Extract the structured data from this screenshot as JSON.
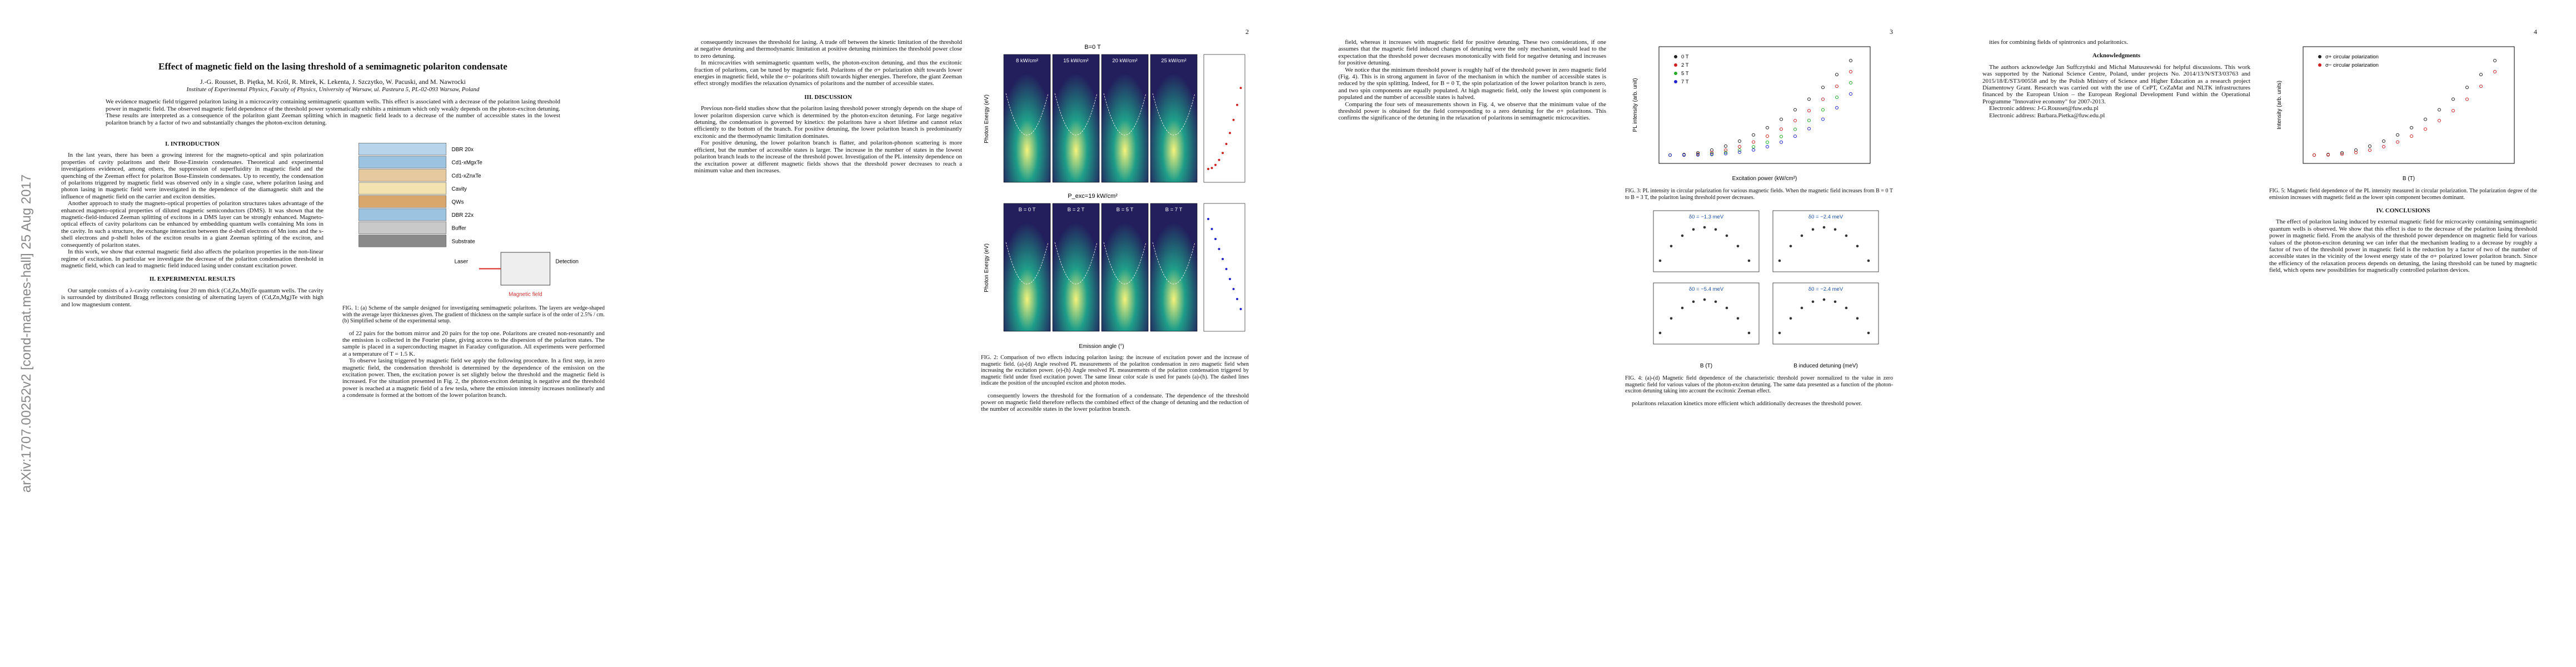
{
  "arxiv_stamp": "arXiv:1707.00252v2 [cond-mat.mes-hall] 25 Aug 2017",
  "pages": [
    {
      "title": "Effect of magnetic field on the lasing threshold of a semimagnetic polariton condensate",
      "authors": "J.-G. Rousset, B. Piętka, M. Król, R. Mirek, K. Lekenta, J. Szczytko, W. Pacuski, and M. Nawrocki",
      "affiliation": "Institute of Experimental Physics, Faculty of Physics, University of Warsaw, ul. Pasteura 5, PL-02-093 Warsaw, Poland",
      "abstract": "We evidence magnetic field triggered polariton lasing in a microcavity containing semimagnetic quantum wells. This effect is associated with a decrease of the polariton lasing threshold power in magnetic field. The observed magnetic field dependence of the threshold power systematically exhibits a minimum which only weakly depends on the photon-exciton detuning. These results are interpreted as a consequence of the polariton giant Zeeman splitting which in magnetic field leads to a decrease of the number of accessible states in the lowest polariton branch by a factor of two and substantially changes the photon-exciton detuning.",
      "columns": [
        [
          {
            "heading": "I. INTRODUCTION"
          },
          {
            "text": "In the last years, there has been a growing interest for the magneto-optical and spin polarization properties of cavity polaritons and their Bose-Einstein condensates. Theoretical and experimental investigations evidenced, among others, the suppression of superfluidity in magnetic field and the quenching of the Zeeman effect for polariton Bose-Einstein condensates. Up to recently, the condensation of polaritons triggered by magnetic field was observed only in a single case, where polariton lasing and photon lasing in magnetic field were investigated in the dependence of the diamagnetic shift and the influence of magnetic field on the carrier and exciton densities."
          },
          {
            "text": "Another approach to study the magneto-optical properties of polariton structures takes advantage of the enhanced magneto-optical properties of diluted magnetic semiconductors (DMS). It was shown that the magnetic-field-induced Zeeman splitting of excitons in a DMS layer can be strongly enhanced. Magneto-optical effects of cavity polaritons can be enhanced by embedding quantum wells containing Mn ions in the cavity. In such a structure, the exchange interaction between the d-shell electrons of Mn ions and the s-shell electrons and p-shell holes of the exciton results in a giant Zeeman splitting of the exciton, and consequently of polariton states."
          },
          {
            "text": "In this work, we show that external magnetic field also affects the polariton properties in the non-linear regime of excitation. In particular we investigate the decrease of the polariton condensation threshold in magnetic field, which can lead to magnetic field induced lasing under constant excitation power."
          },
          {
            "heading": "II. EXPERIMENTAL RESULTS"
          },
          {
            "text": "Our sample consists of a λ-cavity containing four 20 nm thick (Cd,Zn,Mn)Te quantum wells. The cavity is surrounded by distributed Bragg reflectors consisting of alternating layers of (Cd,Zn,Mg)Te with high and low magnesium content."
          }
        ],
        [
          {
            "figure": {
              "kind": "layers",
              "labels": [
                "DBR 20x",
                "Cd1-xMgxTe",
                "Cd1-xZnxTe",
                "Cavity",
                "QWs",
                "DBR 22x",
                "Buffer",
                "Substrate",
                "Laser",
                "Detection",
                "Magnetic field"
              ],
              "caption": "FIG. 1: (a) Scheme of the sample designed for investigating semimagnetic polaritons. The layers are wedge-shaped with the average layer thicknesses given. The gradient of thickness on the sample surface is of the order of 2.5% / cm. (b) Simplified scheme of the experimental setup."
            }
          },
          {
            "text": "of 22 pairs for the bottom mirror and 20 pairs for the top one. Polaritons are created non-resonantly and the emission is collected in the Fourier plane, giving access to the dispersion of the polariton states. The sample is placed in a superconducting magnet in Faraday configuration. All experiments were performed at a temperature of T = 1.5 K."
          },
          {
            "text": "To observe lasing triggered by magnetic field we apply the following procedure. In a first step, in zero magnetic field, the condensation threshold is determined by the dependence of the emission on the excitation power. Then, the excitation power is set slightly below the threshold and the magnetic field is increased. For the situation presented in Fig. 2, the photon-exciton detuning is negative and the threshold power is reached at a magnetic field of a few tesla, where the emission intensity increases nonlinearly and a condensate is formed at the bottom of the lower polariton branch."
          }
        ]
      ]
    },
    {
      "number": "2",
      "columns": [
        [
          {
            "text": "consequently increases the threshold for lasing. A trade off between the kinetic limitation of the threshold at negative detuning and thermodynamic limitation at positive detuning minimizes the threshold power close to zero detuning."
          },
          {
            "text": "In microcavities with semimagnetic quantum wells, the photon-exciton detuning, and thus the excitonic fraction of polaritons, can be tuned by magnetic field. Polaritons of the σ+ polarization shift towards lower energies in magnetic field, while the σ− polaritons shift towards higher energies. Therefore, the giant Zeeman effect strongly modifies the relaxation dynamics of polaritons and the number of accessible states."
          },
          {
            "heading": "III. DISCUSSION"
          },
          {
            "text": "Previous non-field studies show that the polariton lasing threshold power strongly depends on the shape of lower polariton dispersion curve which is determined by the photon-exciton detuning. For large negative detuning, the condensation is governed by kinetics: the polaritons have a short lifetime and cannot relax efficiently to the bottom of the branch. For positive detuning, the lower polariton branch is predominantly excitonic and the thermodynamic limitation dominates."
          },
          {
            "text": "For positive detuning, the lower polariton branch is flatter, and polariton-phonon scattering is more efficient, but the number of accessible states is larger. The increase in the number of states in the lowest polariton branch leads to the increase of the threshold power. Investigation of the PL intensity dependence on the excitation power at different magnetic fields shows that the threshold power decreases to reach a minimum value and then increases."
          }
        ],
        [
          {
            "figure": {
              "kind": "panels",
              "labels": [
                "8 kW/cm²",
                "15 kW/cm²",
                "20 kW/cm²",
                "25 kW/cm²",
                "B = 0 T",
                "B = 2 T",
                "B = 5 T",
                "B = 7 T",
                "Photon Energy (eV)",
                "Emission angle (°)",
                "P_exc=19 kW/cm²",
                "B=0 T"
              ],
              "caption": "FIG. 2: Comparison of two effects inducing polariton lasing: the increase of excitation power and the increase of magnetic field. (a)-(d) Angle resolved PL measurements of the polariton condensation in zero magnetic field when increasing the excitation power. (e)-(h) Angle resolved PL measurements of the polariton condensation triggered by magnetic field under fixed excitation power. The same linear color scale is used for panels (a)-(h). The dashed lines indicate the position of the uncoupled exciton and photon modes."
            }
          },
          {
            "text": "consequently lowers the threshold for the formation of a condensate. The dependence of the threshold power on magnetic field therefore reflects the combined effect of the change of detuning and the reduction of the number of accessible states in the lower polariton branch."
          }
        ]
      ]
    },
    {
      "number": "3",
      "columns": [
        [
          {
            "text": "field, whereas it increases with magnetic field for positive detuning. These two considerations, if one assumes that the magnetic field induced changes of detuning were the only mechanism, would lead to the expectation that the threshold power decreases monotonically with field for negative detuning and increases for positive detuning."
          },
          {
            "text": "We notice that the minimum threshold power is roughly half of the threshold power in zero magnetic field (Fig. 4). This is in strong argument in favor of the mechanism in which the number of accessible states is reduced by the spin splitting. Indeed, for B = 0 T, the spin polarization of the lower polariton branch is zero, and two spin components are equally populated. At high magnetic field, only the lowest spin component is populated and the number of accessible states is halved."
          },
          {
            "text": "Comparing the four sets of measurements shown in Fig. 4, we observe that the minimum value of the threshold power is obtained for the field corresponding to a zero detuning for the σ+ polaritons. This confirms the significance of the detuning in the relaxation of polaritons in semimagnetic microcavities."
          }
        ],
        [
          {
            "figure": {
              "kind": "plot",
              "labels": [
                "PL intensity (arb. unit)",
                "Excitation power (kW/cm²)",
                "0 T",
                "2 T",
                "5 T",
                "7 T"
              ],
              "caption": "FIG. 3: PL intensity in circular polarization for various magnetic fields. When the magnetic field increases from B = 0 T to B = 3 T, the polariton lasing threshold power decreases."
            }
          },
          {
            "figure": {
              "kind": "quad",
              "labels": [
                "δ0 = −1.3 meV",
                "δ0 = −2.4 meV",
                "δ0 = −5.4 meV",
                "δ0 = −2.4 meV",
                "B (T)",
                "B induced detuning (meV)"
              ],
              "caption": "FIG. 4: (a)-(d) Magnetic field dependence of the characteristic threshold power normalized to the value in zero magnetic field for various values of the photon-exciton detuning. The same data presented as a function of the photon-exciton detuning taking into account the excitonic Zeeman effect."
            }
          },
          {
            "text": "polaritons relaxation kinetics more efficient which additionally decreases the threshold power."
          }
        ]
      ]
    },
    {
      "number": "4",
      "columns": [
        [
          {
            "text": "ities for combining fields of spintronics and polaritonics."
          },
          {
            "heading": "Acknowledgments"
          },
          {
            "text": "The authors acknowledge Jan Suffczyński and Michał Matuszewski for helpful discussions. This work was supported by the National Science Centre, Poland, under projects No. 2014/13/N/ST3/03763 and 2015/18/E/ST3/00558 and by the Polish Ministry of Science and Higher Education as a research project Diamentowy Grant. Research was carried out with the use of CePT, CeZaMat and NLTK infrastructures financed by the European Union – the European Regional Development Fund within the Operational Programme \"Innovative economy\" for 2007-2013."
          },
          {
            "text": "Electronic address: J-G.Rousset@fuw.edu.pl"
          },
          {
            "text": "Electronic address: Barbara.Pietka@fuw.edu.pl"
          }
        ],
        [
          {
            "figure": {
              "kind": "plot",
              "labels": [
                "Intensity (arb. units)",
                "B (T)",
                "σ+ circular polarization",
                "σ− circular polarization"
              ],
              "caption": "FIG. 5: Magnetic field dependence of the PL intensity measured in circular polarization. The polarization degree of the emission increases with magnetic field as the lower spin component becomes dominant."
            }
          },
          {
            "heading": "IV. CONCLUSIONS"
          },
          {
            "text": "The effect of polariton lasing induced by external magnetic field for microcavity containing semimagnetic quantum wells is observed. We show that this effect is due to the decrease of the polariton lasing threshold power in magnetic field. From the analysis of the threshold power dependence on magnetic field for various values of the photon-exciton detuning we can infer that the mechanism leading to a decrease by roughly a factor of two of the threshold power in magnetic field is the reduction by a factor of two of the number of accessible states in the vicinity of the lowest energy state of the σ+ polarized lower polariton branch. Since the efficiency of the relaxation process depends on detuning, the lasing threshold can be tuned by magnetic field, which opens new possibilities for magnetically controlled polariton devices."
          }
        ]
      ]
    }
  ]
}
